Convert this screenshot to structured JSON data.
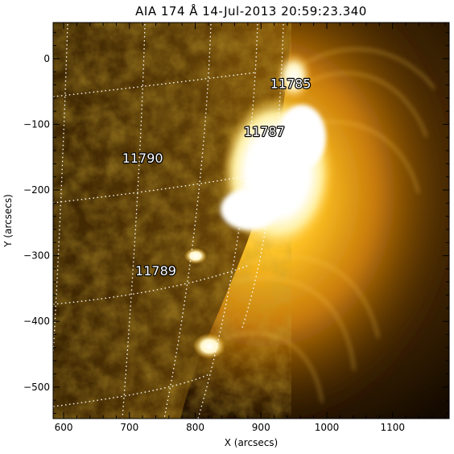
{
  "title": "AIA 174 Å 14-Jul-2013 20:59:23.340",
  "x_axis": {
    "label": "X (arcsecs)",
    "range": [
      584,
      1186
    ],
    "ticks": [
      600,
      700,
      800,
      900,
      1000,
      1100
    ]
  },
  "y_axis": {
    "label": "Y (arcsecs)",
    "range": [
      -548,
      55
    ],
    "ticks": [
      0,
      -100,
      -200,
      -300,
      -400,
      -500
    ]
  },
  "active_regions": [
    {
      "label": "11785",
      "x": 945,
      "y": -45
    },
    {
      "label": "11787",
      "x": 905,
      "y": -118
    },
    {
      "label": "11790",
      "x": 720,
      "y": -158
    },
    {
      "label": "11789",
      "x": 740,
      "y": -330
    }
  ],
  "colors": {
    "disk_dark": "#3a2400",
    "disk_mid": "#6b4a08",
    "corona_orange": "#e39a12",
    "corona_yellow": "#ffd24a",
    "flare_white": "#ffffff",
    "background": "#160c00",
    "grid_line": "#ffffff"
  },
  "grid": "heliographic lat/lon dotted",
  "colormap": "sdoaia171-like gold"
}
